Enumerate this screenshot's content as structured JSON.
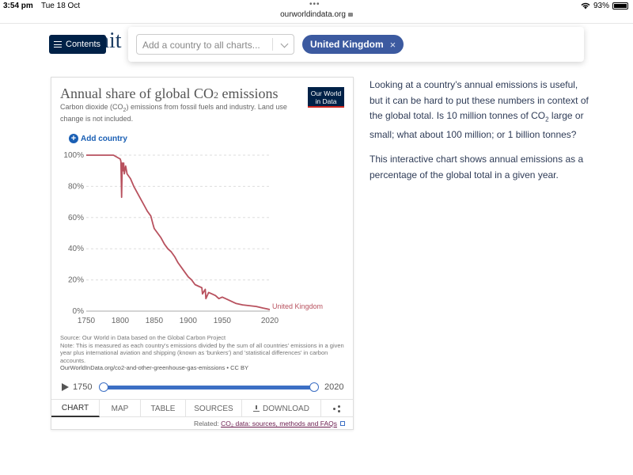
{
  "status": {
    "time": "3:54 pm",
    "date": "Tue 18 Oct",
    "battery": "93%",
    "dots": "•••"
  },
  "browser": {
    "url": "ourworldindata.org"
  },
  "page": {
    "title_fragment": "nit",
    "contents_label": "Contents"
  },
  "country_selector": {
    "placeholder": "Add a country to all charts...",
    "selected": "United Kingdom",
    "remove": "×"
  },
  "chart": {
    "title_main": "Annual share of global CO",
    "title_sub2": "2",
    "title_tail": " emissions",
    "subtitle_a": "Carbon dioxide (CO",
    "subtitle_sub": "2",
    "subtitle_b": ") emissions from fossil fuels and industry. Land use change is not included.",
    "logo_line1": "Our World",
    "logo_line2": "in Data",
    "add_country": "Add country",
    "source": "Source: Our World in Data based on the Global Carbon Project",
    "note": "Note: This is measured as each country's emissions divided by the sum of all countries' emissions in a given year plus international aviation and shipping (known as 'bunkers') and 'statistical differences' in carbon accounts.",
    "url_license": "OurWorldInData.org/co2-and-other-greenhouse-gas-emissions • CC BY",
    "timeline_start": "1750",
    "timeline_end": "2020",
    "related_label": "Related: ",
    "related_link": "CO₂ data: sources, methods and FAQs"
  },
  "tabs": [
    {
      "label": "CHART"
    },
    {
      "label": "MAP"
    },
    {
      "label": "TABLE"
    },
    {
      "label": "SOURCES"
    },
    {
      "label": "DOWNLOAD"
    }
  ],
  "article": {
    "p1a": "Looking at a country’s annual emissions is useful, but it can be hard to put these numbers in context of the global total. Is 10 million tonnes of CO",
    "p1sub": "2",
    "p1b": " large or small; what about 100 million; or 1 billion tonnes?",
    "p2": "This interactive chart shows annual emissions as a percentage of the global total in a given year."
  },
  "colors": {
    "series": "#b8515e",
    "accent": "#3c5aa0",
    "navy": "#002147"
  },
  "chart_data": {
    "type": "line",
    "series": [
      {
        "name": "United Kingdom",
        "x": [
          1750,
          1760,
          1770,
          1780,
          1790,
          1800,
          1801,
          1802,
          1803,
          1804,
          1805,
          1806,
          1808,
          1810,
          1815,
          1820,
          1825,
          1830,
          1835,
          1840,
          1845,
          1848,
          1850,
          1855,
          1860,
          1865,
          1870,
          1875,
          1880,
          1885,
          1890,
          1895,
          1900,
          1905,
          1910,
          1915,
          1920,
          1921,
          1925,
          1926,
          1930,
          1935,
          1940,
          1945,
          1950,
          1955,
          1960,
          1970,
          1980,
          1990,
          2000,
          2010,
          2015,
          2020
        ],
        "values": [
          100,
          100,
          100,
          100,
          100,
          97.5,
          96,
          73,
          95,
          90,
          95,
          88,
          93,
          88,
          85,
          80,
          76,
          72,
          68,
          64,
          61,
          56,
          53,
          50,
          47,
          43,
          40,
          38,
          35,
          31,
          28,
          25,
          22,
          20,
          17,
          16,
          15,
          11,
          14,
          8,
          12,
          11,
          10,
          8,
          9,
          8,
          7,
          5,
          4,
          3.5,
          3,
          2,
          1.5,
          1
        ],
        "end_label": "United Kingdom"
      }
    ],
    "xlim": [
      1750,
      2020
    ],
    "ylim": [
      0,
      100
    ],
    "x_ticks": [
      "1750",
      "1800",
      "1850",
      "1900",
      "1950",
      "2020"
    ],
    "y_ticks": [
      "0%",
      "20%",
      "40%",
      "60%",
      "80%",
      "100%"
    ],
    "grid": "horizontal dashed"
  }
}
